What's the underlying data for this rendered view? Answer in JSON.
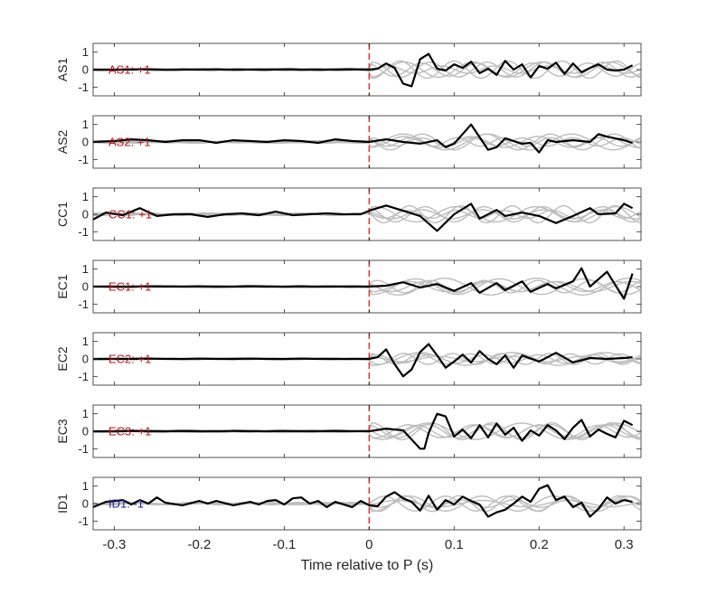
{
  "chart_data": {
    "type": "line",
    "xlabel": "Time relative to P (s)",
    "xlim": [
      -0.325,
      0.32
    ],
    "xticks": [
      -0.3,
      -0.2,
      -0.1,
      0,
      0.1,
      0.2,
      0.3
    ],
    "xtick_labels": [
      "-0.3",
      "-0.2",
      "-0.1",
      "0",
      "0.1",
      "0.2",
      "0.3"
    ],
    "ylim": [
      -1.5,
      1.5
    ],
    "yticks": [
      -1,
      0,
      1
    ],
    "ytick_labels": [
      "-1",
      "0",
      "1"
    ],
    "marker_line": {
      "x": 0,
      "color": "#e8302c",
      "style": "dashed"
    },
    "colors": {
      "trace": "#000000",
      "background_traces": "#bdbdbd",
      "positive_label": "#b5171c",
      "negative_label": "#1c25a5",
      "axes": "#262626"
    },
    "panels": [
      {
        "ylabel": "AS1",
        "annotation": "AS1: +1",
        "annotation_color": "#b5171c",
        "trace_x": [
          -0.325,
          -0.3,
          -0.28,
          -0.26,
          -0.24,
          -0.22,
          -0.2,
          -0.18,
          -0.16,
          -0.14,
          -0.12,
          -0.1,
          -0.08,
          -0.06,
          -0.04,
          -0.02,
          0,
          0.01,
          0.02,
          0.03,
          0.04,
          0.05,
          0.06,
          0.07,
          0.08,
          0.09,
          0.1,
          0.11,
          0.12,
          0.13,
          0.14,
          0.15,
          0.16,
          0.17,
          0.18,
          0.19,
          0.2,
          0.21,
          0.22,
          0.23,
          0.24,
          0.25,
          0.26,
          0.27,
          0.28,
          0.29,
          0.3,
          0.31
        ],
        "trace_y": [
          0,
          0,
          0,
          0.02,
          0,
          0,
          0,
          0.02,
          0,
          0,
          0,
          0.02,
          0,
          0,
          0,
          0.02,
          0,
          0.05,
          0.35,
          0.1,
          -0.8,
          -0.95,
          0.6,
          0.9,
          0.05,
          -0.05,
          0.3,
          0.1,
          0.45,
          -0.2,
          0.05,
          -0.3,
          0.5,
          0.0,
          0.3,
          -0.45,
          0.2,
          0.05,
          0.4,
          -0.25,
          0.35,
          -0.15,
          0.1,
          0.3,
          0.0,
          -0.05,
          0.0,
          0.25
        ]
      },
      {
        "ylabel": "AS2",
        "annotation": "AS2: +1",
        "annotation_color": "#b5171c",
        "trace_x": [
          -0.325,
          -0.3,
          -0.28,
          -0.26,
          -0.24,
          -0.22,
          -0.2,
          -0.18,
          -0.16,
          -0.14,
          -0.12,
          -0.1,
          -0.08,
          -0.06,
          -0.04,
          -0.02,
          0,
          0.02,
          0.04,
          0.06,
          0.08,
          0.09,
          0.1,
          0.12,
          0.14,
          0.15,
          0.16,
          0.18,
          0.19,
          0.2,
          0.21,
          0.22,
          0.24,
          0.26,
          0.27,
          0.28,
          0.3,
          0.31
        ],
        "trace_y": [
          0,
          0.05,
          0.15,
          0.1,
          0.0,
          0.1,
          0.1,
          -0.05,
          0.1,
          0.05,
          0.0,
          0.1,
          0.05,
          -0.05,
          0.15,
          0.05,
          0.0,
          0.15,
          0.0,
          -0.1,
          0.1,
          -0.3,
          -0.1,
          1.0,
          -0.45,
          -0.3,
          0.2,
          -0.1,
          -0.05,
          -0.6,
          0.1,
          0.0,
          0.1,
          0.0,
          0.45,
          0.3,
          0.1,
          -0.05
        ]
      },
      {
        "ylabel": "CC1",
        "annotation": "CC1: +1",
        "annotation_color": "#b5171c",
        "trace_x": [
          -0.325,
          -0.31,
          -0.29,
          -0.27,
          -0.25,
          -0.23,
          -0.21,
          -0.19,
          -0.17,
          -0.15,
          -0.13,
          -0.11,
          -0.09,
          -0.07,
          -0.05,
          -0.03,
          -0.01,
          0,
          0.02,
          0.04,
          0.06,
          0.08,
          0.1,
          0.12,
          0.13,
          0.15,
          0.16,
          0.18,
          0.2,
          0.22,
          0.24,
          0.26,
          0.27,
          0.29,
          0.3,
          0.31
        ],
        "trace_y": [
          -0.3,
          0.1,
          -0.05,
          0.35,
          -0.1,
          0.0,
          0.0,
          -0.15,
          0.0,
          0.05,
          -0.05,
          0.15,
          -0.05,
          0.0,
          0.05,
          0.0,
          0.0,
          0.2,
          0.5,
          0.2,
          -0.1,
          -0.95,
          0.0,
          0.6,
          -0.25,
          0.25,
          -0.1,
          0.1,
          -0.1,
          -0.5,
          -0.1,
          0.35,
          0.0,
          0.05,
          0.6,
          0.35
        ]
      },
      {
        "ylabel": "EC1",
        "annotation": "EC1: +1",
        "annotation_color": "#b5171c",
        "trace_x": [
          -0.325,
          -0.3,
          -0.28,
          -0.26,
          -0.24,
          -0.22,
          -0.2,
          -0.18,
          -0.16,
          -0.14,
          -0.12,
          -0.1,
          -0.08,
          -0.06,
          -0.04,
          -0.02,
          0,
          0.02,
          0.04,
          0.06,
          0.08,
          0.1,
          0.12,
          0.13,
          0.15,
          0.16,
          0.18,
          0.19,
          0.21,
          0.22,
          0.24,
          0.25,
          0.26,
          0.28,
          0.3,
          0.31
        ],
        "trace_y": [
          0,
          0,
          0,
          0.02,
          0,
          0,
          0.02,
          0,
          0,
          0.02,
          0,
          0,
          0.02,
          0,
          0,
          0,
          0,
          0.05,
          0.25,
          -0.05,
          0.15,
          -0.25,
          0.2,
          -0.35,
          0.2,
          -0.2,
          0.3,
          -0.3,
          0.15,
          -0.1,
          0.3,
          1.05,
          0.0,
          0.85,
          -0.7,
          0.75
        ]
      },
      {
        "ylabel": "EC2",
        "annotation": "EC2: +1",
        "annotation_color": "#b5171c",
        "trace_x": [
          -0.325,
          -0.3,
          -0.28,
          -0.26,
          -0.24,
          -0.22,
          -0.2,
          -0.18,
          -0.16,
          -0.14,
          -0.12,
          -0.1,
          -0.08,
          -0.06,
          -0.04,
          -0.02,
          0,
          0.01,
          0.02,
          0.03,
          0.04,
          0.05,
          0.06,
          0.07,
          0.08,
          0.09,
          0.1,
          0.11,
          0.12,
          0.13,
          0.14,
          0.15,
          0.16,
          0.17,
          0.18,
          0.2,
          0.22,
          0.24,
          0.26,
          0.28,
          0.3,
          0.31
        ],
        "trace_y": [
          0,
          0,
          0,
          0.02,
          0,
          0,
          0.02,
          0,
          0,
          0.02,
          0,
          0,
          0.02,
          0,
          0,
          0,
          0,
          0.1,
          0.55,
          -0.3,
          -1.0,
          -0.6,
          0.4,
          0.85,
          0.2,
          -0.5,
          -0.15,
          0.25,
          -0.2,
          0.45,
          0.0,
          -0.3,
          0.2,
          -0.5,
          0.2,
          -0.15,
          0.35,
          -0.2,
          0.05,
          0.0,
          0.05,
          0.1
        ]
      },
      {
        "ylabel": "EC3",
        "annotation": "EC3: +1",
        "annotation_color": "#b5171c",
        "trace_x": [
          -0.325,
          -0.3,
          -0.28,
          -0.26,
          -0.24,
          -0.22,
          -0.2,
          -0.18,
          -0.16,
          -0.14,
          -0.12,
          -0.1,
          -0.08,
          -0.06,
          -0.04,
          -0.02,
          0,
          0.02,
          0.04,
          0.06,
          0.065,
          0.07,
          0.08,
          0.09,
          0.1,
          0.11,
          0.12,
          0.13,
          0.14,
          0.15,
          0.16,
          0.17,
          0.18,
          0.19,
          0.2,
          0.21,
          0.22,
          0.23,
          0.24,
          0.25,
          0.26,
          0.27,
          0.28,
          0.29,
          0.3,
          0.31
        ],
        "trace_y": [
          0,
          0,
          0.02,
          0,
          0,
          0.02,
          0,
          0,
          0.02,
          0,
          0,
          0.02,
          0,
          0,
          0.02,
          0,
          0,
          0.15,
          0.05,
          -1.0,
          -1.0,
          -0.1,
          1.0,
          0.85,
          -0.3,
          0.1,
          -0.4,
          0.35,
          -0.35,
          0.45,
          -0.2,
          0.2,
          -0.55,
          0.05,
          -0.25,
          0.35,
          0.05,
          -0.45,
          0.2,
          0.65,
          -0.3,
          0.1,
          -0.15,
          -0.35,
          0.6,
          0.35
        ]
      },
      {
        "ylabel": "ID1",
        "annotation": "ID1: -1",
        "annotation_color": "#1c25a5",
        "trace_x": [
          -0.325,
          -0.31,
          -0.29,
          -0.28,
          -0.27,
          -0.26,
          -0.25,
          -0.24,
          -0.22,
          -0.2,
          -0.19,
          -0.18,
          -0.16,
          -0.14,
          -0.13,
          -0.12,
          -0.11,
          -0.1,
          -0.09,
          -0.08,
          -0.07,
          -0.06,
          -0.05,
          -0.04,
          -0.02,
          -0.01,
          0,
          0.01,
          0.02,
          0.03,
          0.04,
          0.05,
          0.06,
          0.07,
          0.08,
          0.09,
          0.1,
          0.11,
          0.12,
          0.13,
          0.14,
          0.15,
          0.16,
          0.17,
          0.18,
          0.19,
          0.2,
          0.21,
          0.22,
          0.23,
          0.24,
          0.25,
          0.26,
          0.27,
          0.28,
          0.29,
          0.3,
          0.31
        ],
        "trace_y": [
          -0.2,
          0.1,
          0.2,
          -0.05,
          0.2,
          0.0,
          0.35,
          0.05,
          -0.1,
          0.15,
          0.0,
          0.15,
          -0.1,
          0.1,
          -0.05,
          0.15,
          0.2,
          -0.05,
          0.3,
          0.35,
          0.0,
          0.15,
          -0.2,
          0.1,
          -0.2,
          0.15,
          -0.1,
          -0.15,
          0.4,
          0.65,
          0.3,
          0.1,
          -0.4,
          0.45,
          -0.35,
          0.2,
          -0.05,
          0.4,
          0.15,
          -0.05,
          -0.75,
          -0.5,
          -0.35,
          0.0,
          0.4,
          0.1,
          0.85,
          1.05,
          0.2,
          0.4,
          -0.2,
          0.05,
          -0.75,
          -0.3,
          0.35,
          0.0,
          0.2,
          0.1
        ]
      }
    ]
  }
}
